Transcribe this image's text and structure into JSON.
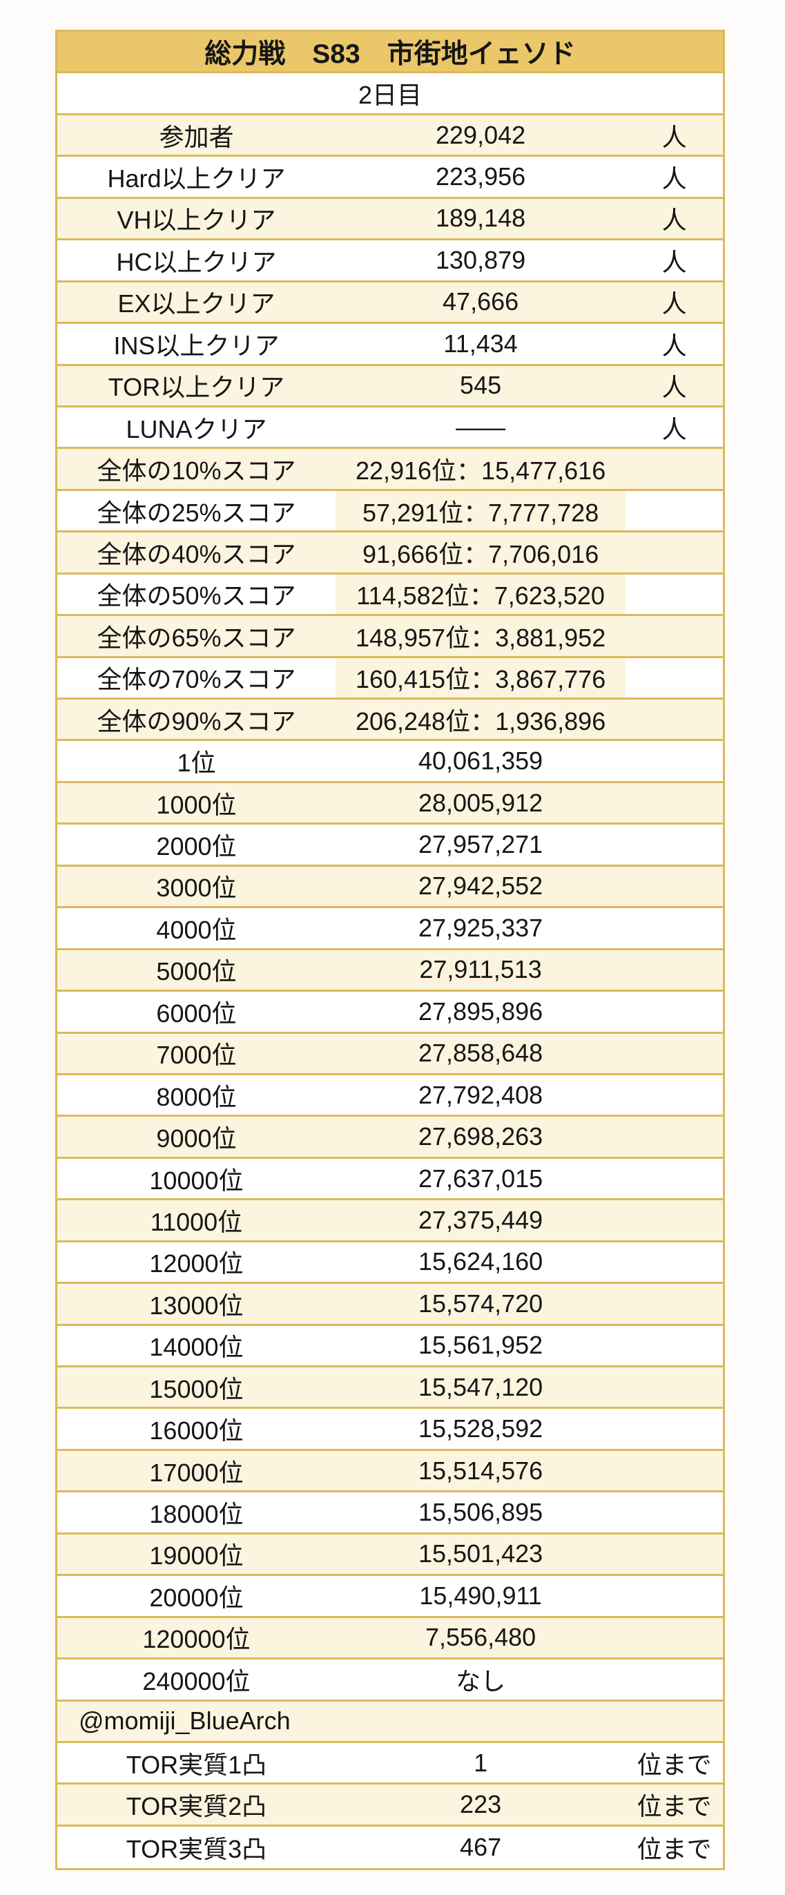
{
  "chart_data": {
    "type": "table",
    "title": "総力戦　S83　市街地イェソド",
    "subtitle": "2日目",
    "colors": {
      "page_bg": "#fefcfb",
      "header_bg": "#eac768",
      "border": "#dcb95b",
      "stripe_bg": "#fbf4de",
      "row_bg": "#ffffff",
      "text": "#161616"
    },
    "rows": [
      {
        "label": "参加者",
        "value": "229,042",
        "unit": "人",
        "stripe": true
      },
      {
        "label": "Hard以上クリア",
        "value": "223,956",
        "unit": "人",
        "stripe": false
      },
      {
        "label": "VH以上クリア",
        "value": "189,148",
        "unit": "人",
        "stripe": true
      },
      {
        "label": "HC以上クリア",
        "value": "130,879",
        "unit": "人",
        "stripe": false
      },
      {
        "label": "EX以上クリア",
        "value": "47,666",
        "unit": "人",
        "stripe": true
      },
      {
        "label": "INS以上クリア",
        "value": "11,434",
        "unit": "人",
        "stripe": false
      },
      {
        "label": "TOR以上クリア",
        "value": "545",
        "unit": "人",
        "stripe": true
      },
      {
        "label": "LUNAクリア",
        "value": "――",
        "unit": "人",
        "stripe": false
      },
      {
        "label": "全体の10%スコア",
        "value": "22,916位：15,477,616",
        "unit": "",
        "stripe": true
      },
      {
        "label": "全体の25%スコア",
        "value": "57,291位：7,777,728",
        "unit": "",
        "stripe": false,
        "highlight": true
      },
      {
        "label": "全体の40%スコア",
        "value": "91,666位：7,706,016",
        "unit": "",
        "stripe": true
      },
      {
        "label": "全体の50%スコア",
        "value": "114,582位：7,623,520",
        "unit": "",
        "stripe": false,
        "highlight": true
      },
      {
        "label": "全体の65%スコア",
        "value": "148,957位：3,881,952",
        "unit": "",
        "stripe": true
      },
      {
        "label": "全体の70%スコア",
        "value": "160,415位：3,867,776",
        "unit": "",
        "stripe": false,
        "highlight": true
      },
      {
        "label": "全体の90%スコア",
        "value": "206,248位：1,936,896",
        "unit": "",
        "stripe": true
      },
      {
        "label": "1位",
        "value": "40,061,359",
        "unit": "",
        "stripe": false
      },
      {
        "label": "1000位",
        "value": "28,005,912",
        "unit": "",
        "stripe": true
      },
      {
        "label": "2000位",
        "value": "27,957,271",
        "unit": "",
        "stripe": false
      },
      {
        "label": "3000位",
        "value": "27,942,552",
        "unit": "",
        "stripe": true
      },
      {
        "label": "4000位",
        "value": "27,925,337",
        "unit": "",
        "stripe": false
      },
      {
        "label": "5000位",
        "value": "27,911,513",
        "unit": "",
        "stripe": true
      },
      {
        "label": "6000位",
        "value": "27,895,896",
        "unit": "",
        "stripe": false
      },
      {
        "label": "7000位",
        "value": "27,858,648",
        "unit": "",
        "stripe": true
      },
      {
        "label": "8000位",
        "value": "27,792,408",
        "unit": "",
        "stripe": false
      },
      {
        "label": "9000位",
        "value": "27,698,263",
        "unit": "",
        "stripe": true
      },
      {
        "label": "10000位",
        "value": "27,637,015",
        "unit": "",
        "stripe": false
      },
      {
        "label": "11000位",
        "value": "27,375,449",
        "unit": "",
        "stripe": true
      },
      {
        "label": "12000位",
        "value": "15,624,160",
        "unit": "",
        "stripe": false
      },
      {
        "label": "13000位",
        "value": "15,574,720",
        "unit": "",
        "stripe": true
      },
      {
        "label": "14000位",
        "value": "15,561,952",
        "unit": "",
        "stripe": false
      },
      {
        "label": "15000位",
        "value": "15,547,120",
        "unit": "",
        "stripe": true
      },
      {
        "label": "16000位",
        "value": "15,528,592",
        "unit": "",
        "stripe": false
      },
      {
        "label": "17000位",
        "value": "15,514,576",
        "unit": "",
        "stripe": true
      },
      {
        "label": "18000位",
        "value": "15,506,895",
        "unit": "",
        "stripe": false
      },
      {
        "label": "19000位",
        "value": "15,501,423",
        "unit": "",
        "stripe": true
      },
      {
        "label": "20000位",
        "value": "15,490,911",
        "unit": "",
        "stripe": false
      },
      {
        "label": "120000位",
        "value": "7,556,480",
        "unit": "",
        "stripe": true
      },
      {
        "label": "240000位",
        "value": "なし",
        "unit": "",
        "stripe": false
      },
      {
        "label": "@momiji_BlueArch",
        "value": "",
        "unit": "",
        "stripe": true,
        "layout": "full-left"
      },
      {
        "label": "TOR実質1凸",
        "value": "1",
        "unit": "位まで",
        "stripe": false
      },
      {
        "label": "TOR実質2凸",
        "value": "223",
        "unit": "位まで",
        "stripe": true
      },
      {
        "label": "TOR実質3凸",
        "value": "467",
        "unit": "位まで",
        "stripe": false
      }
    ]
  }
}
